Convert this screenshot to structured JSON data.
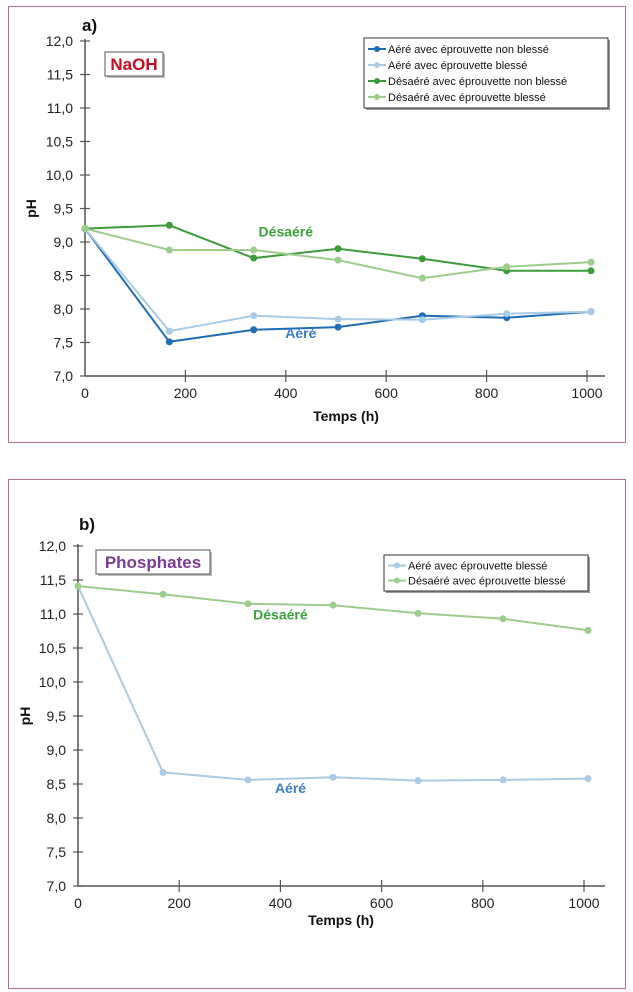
{
  "chart_data": [
    {
      "type": "line",
      "panel_label": "a)",
      "badge": {
        "text": "NaOH",
        "color": "#cc0a1e"
      },
      "title": "",
      "xlabel": "Temps (h)",
      "ylabel": "pH",
      "xlim": [
        0,
        1050
      ],
      "ylim": [
        7.0,
        12.0
      ],
      "xticks": [
        0,
        200,
        400,
        600,
        800,
        1000
      ],
      "xtick_labels": [
        "0",
        "200",
        "400",
        "600",
        "800",
        "1000"
      ],
      "yticks": [
        7.0,
        7.5,
        8.0,
        8.5,
        9.0,
        9.5,
        10.0,
        10.5,
        11.0,
        11.5,
        12.0
      ],
      "ytick_labels": [
        "7,0",
        "7,5",
        "8,0",
        "8,5",
        "9,0",
        "9,5",
        "10,0",
        "10,5",
        "11,0",
        "11,5",
        "12,0"
      ],
      "grid": false,
      "legend_position": "top-right",
      "x": [
        0,
        168,
        336,
        504,
        672,
        840,
        1008
      ],
      "series": [
        {
          "name": "Aéré avec éprouvette non blessé",
          "color": "#1f6db5",
          "values": [
            9.2,
            7.51,
            7.69,
            7.73,
            7.9,
            7.87,
            7.96
          ]
        },
        {
          "name": "Aéré avec éprouvette blessé",
          "color": "#a9cbe6",
          "values": [
            9.2,
            7.67,
            7.9,
            7.85,
            7.84,
            7.93,
            7.96
          ]
        },
        {
          "name": "Désaéré avec éprouvette non blessé",
          "color": "#3e9b3c",
          "values": [
            9.2,
            9.25,
            8.76,
            8.9,
            8.75,
            8.57,
            8.57
          ]
        },
        {
          "name": "Désaéré avec éprouvette blessé",
          "color": "#9dcd8c",
          "values": [
            9.2,
            8.88,
            8.88,
            8.73,
            8.46,
            8.63,
            8.7
          ]
        }
      ],
      "annotations": [
        {
          "text": "Désaéré",
          "x": 400,
          "y": 9.08,
          "color": "#3aa33a"
        },
        {
          "text": "Aéré",
          "x": 430,
          "y": 7.57,
          "color": "#3d7cc9"
        }
      ]
    },
    {
      "type": "line",
      "panel_label": "b)",
      "badge": {
        "text": "Phosphates",
        "color": "#7a3a96"
      },
      "title": "",
      "xlabel": "Temps (h)",
      "ylabel": "pH",
      "xlim": [
        0,
        1050
      ],
      "ylim": [
        7.0,
        12.0
      ],
      "xticks": [
        0,
        200,
        400,
        600,
        800,
        1000
      ],
      "xtick_labels": [
        "0",
        "200",
        "400",
        "600",
        "800",
        "1000"
      ],
      "yticks": [
        7.0,
        7.5,
        8.0,
        8.5,
        9.0,
        9.5,
        10.0,
        10.5,
        11.0,
        11.5,
        12.0
      ],
      "ytick_labels": [
        "7,0",
        "7,5",
        "8,0",
        "8,5",
        "9,0",
        "9,5",
        "10,0",
        "10,5",
        "11,0",
        "11,5",
        "12,0"
      ],
      "grid": false,
      "legend_position": "top-right",
      "x": [
        0,
        168,
        336,
        504,
        672,
        840,
        1008
      ],
      "series": [
        {
          "name": "Aéré avec éprouvette blessé",
          "color": "#a9cbe6",
          "values": [
            11.41,
            8.67,
            8.56,
            8.6,
            8.55,
            8.56,
            8.58
          ]
        },
        {
          "name": "Désaéré avec éprouvette blessé",
          "color": "#9dcd8c",
          "values": [
            11.41,
            11.29,
            11.15,
            11.13,
            11.01,
            10.93,
            10.76
          ]
        }
      ],
      "annotations": [
        {
          "text": "Désaéré",
          "x": 400,
          "y": 10.92,
          "color": "#3aa33a"
        },
        {
          "text": "Aéré",
          "x": 420,
          "y": 8.37,
          "color": "#3d7cc9"
        }
      ]
    }
  ]
}
